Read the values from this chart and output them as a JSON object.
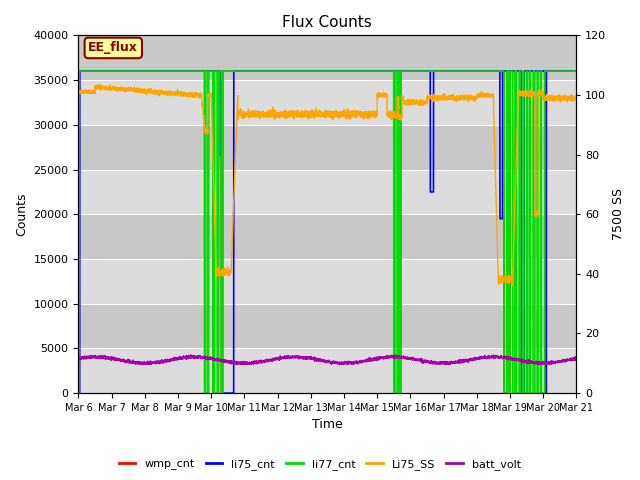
{
  "title": "Flux Counts",
  "xlabel": "Time",
  "ylabel_left": "Counts",
  "ylabel_right": "7500 SS",
  "annotation_text": "EE_flux",
  "annotation_color": "#8B0000",
  "annotation_bg": "#FFFF99",
  "ylim_left": [
    0,
    40000
  ],
  "ylim_right": [
    0,
    120
  ],
  "xtick_labels": [
    "Mar 6",
    "Mar 7",
    "Mar 8",
    "Mar 9",
    "Mar 10",
    "Mar 11",
    "Mar 12",
    "Mar 13",
    "Mar 14",
    "Mar 15",
    "Mar 16",
    "Mar 17",
    "Mar 18",
    "Mar 19",
    "Mar 20",
    "Mar 21"
  ],
  "bg_color": "#E0E0E0",
  "alt_bg_color": "#D0D0D0",
  "legend_entries": [
    {
      "label": "wmp_cnt",
      "color": "#FF0000"
    },
    {
      "label": "li75_cnt",
      "color": "#0000FF"
    },
    {
      "label": "li77_cnt",
      "color": "#00DD00"
    },
    {
      "label": "Li75_SS",
      "color": "#FFA500"
    },
    {
      "label": "batt_volt",
      "color": "#AA00AA"
    }
  ]
}
